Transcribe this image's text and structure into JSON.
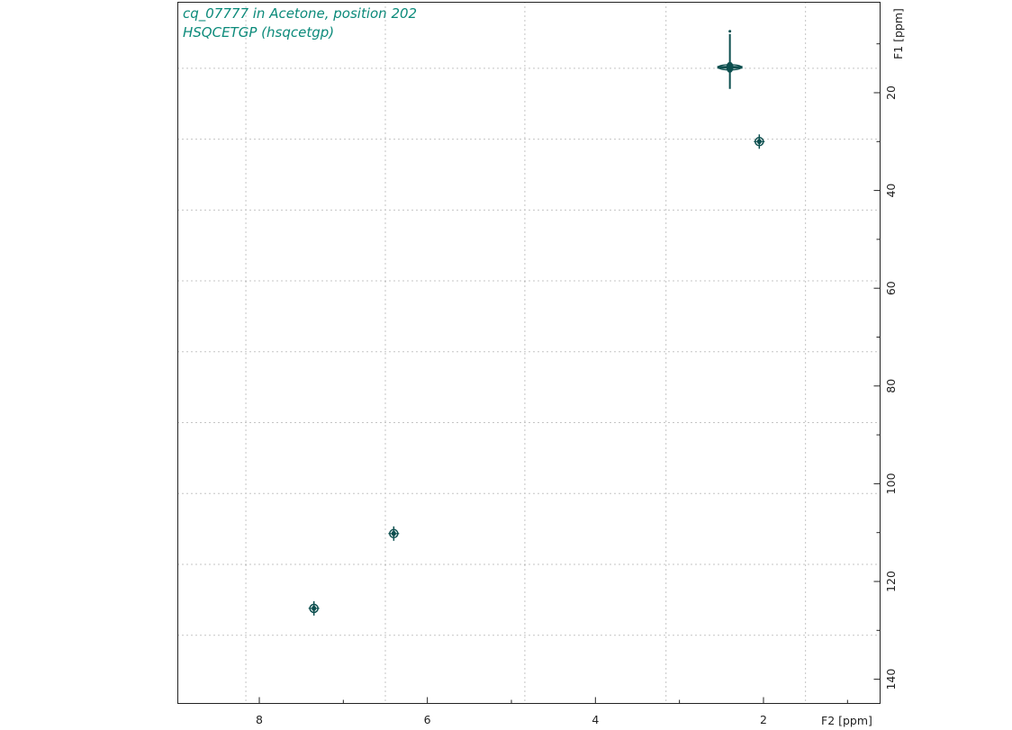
{
  "chart_data": {
    "type": "scatter",
    "subtype": "2D NMR HSQC contour plot",
    "title": "cq_07777 in Acetone, position 202",
    "subtitle": "HSQCETGP (hsqcetgp)",
    "xlabel": "F2 [ppm]",
    "ylabel": "F1 [ppm]",
    "xlim": [
      9.0,
      -0.2
    ],
    "ylim": [
      0,
      146
    ],
    "x_reversed": true,
    "y_reversed": true,
    "x_ticks": [
      8,
      6,
      4,
      2
    ],
    "y_ticks": [
      20,
      40,
      60,
      80,
      100,
      120,
      140
    ],
    "x_grid": [
      8.16,
      6.5,
      4.84,
      3.16,
      1.5
    ],
    "y_grid": [
      15,
      29.5,
      44,
      58.5,
      73,
      87.5,
      102,
      116.5,
      131
    ],
    "grid": true,
    "colors": {
      "contour": "#0d4f4f",
      "title": "#0b8a7a",
      "grid": "#8a8a8a",
      "axis": "#222222"
    },
    "points": [
      {
        "x": 2.4,
        "y": 14.8,
        "shape": "cross"
      },
      {
        "x": 2.05,
        "y": 30.0,
        "shape": "spot"
      },
      {
        "x": 6.4,
        "y": 110.2,
        "shape": "spot"
      },
      {
        "x": 7.35,
        "y": 125.5,
        "shape": "spot"
      }
    ]
  }
}
